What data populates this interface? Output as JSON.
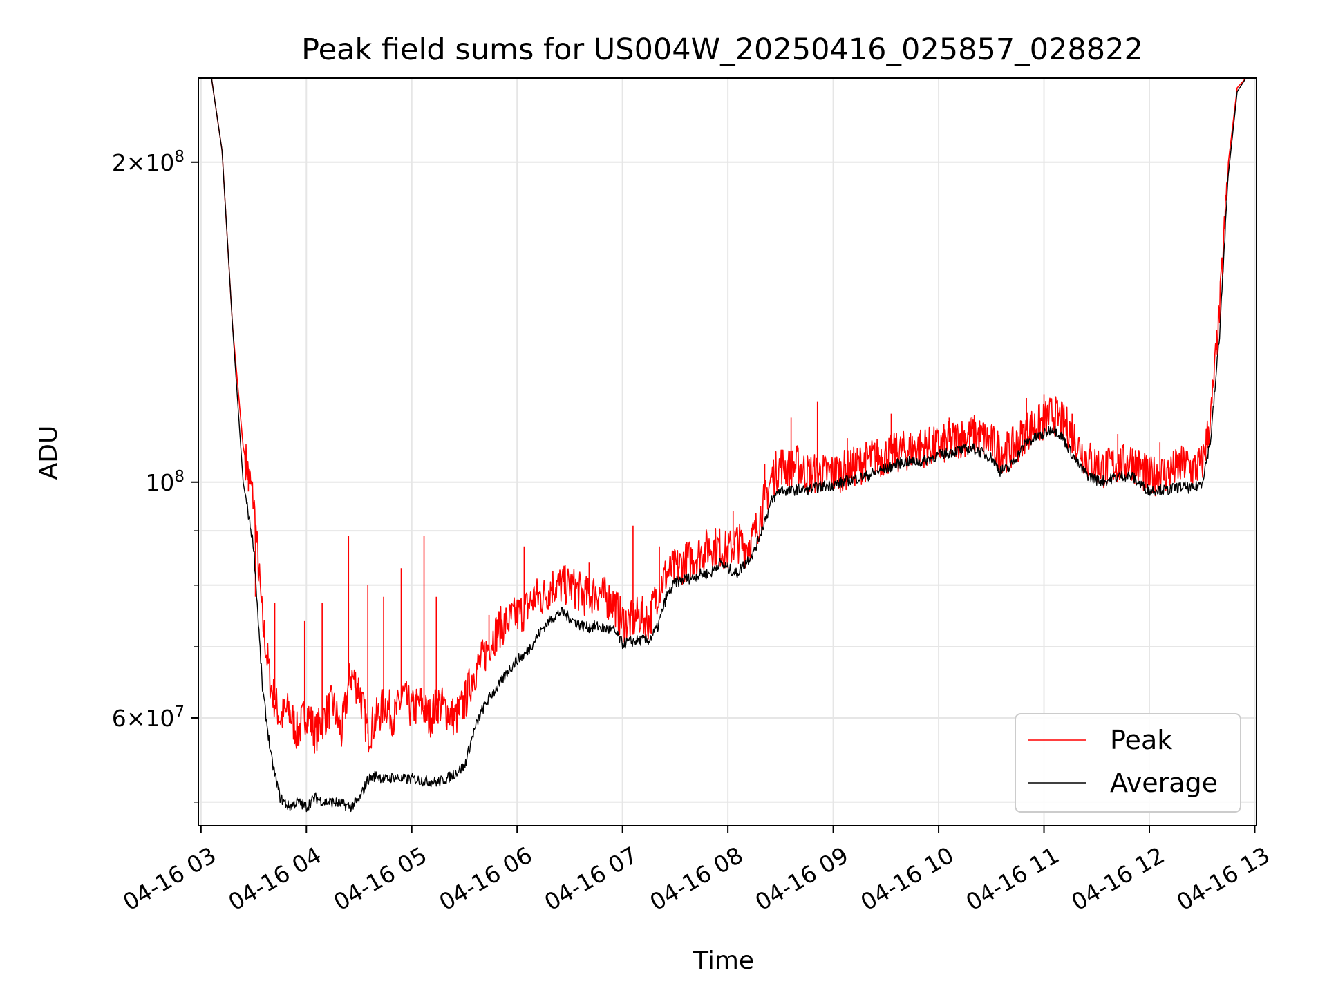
{
  "chart_data": {
    "type": "line",
    "title": "Peak field sums for US004W_20250416_025857_028822",
    "xlabel": "Time",
    "ylabel": "ADU",
    "y_scale": "log",
    "ylim": [
      47500000,
      240000000
    ],
    "xlim": [
      "04-16 02:58:30",
      "04-16 13:01:00"
    ],
    "grid": true,
    "legend_position": "lower-right",
    "x_ticks": [
      "04-16 03",
      "04-16 04",
      "04-16 05",
      "04-16 06",
      "04-16 07",
      "04-16 08",
      "04-16 09",
      "04-16 10",
      "04-16 11",
      "04-16 12",
      "04-16 13"
    ],
    "y_major_ticks": [
      {
        "value": 200000000,
        "mantissa": "2",
        "exponent": "8",
        "times": "×"
      },
      {
        "value": 100000000,
        "mantissa": "",
        "exponent": "8",
        "times": ""
      },
      {
        "value": 60000000,
        "mantissa": "6",
        "exponent": "7",
        "times": "×"
      }
    ],
    "y_minor_ticks": [
      50000000,
      60000000,
      70000000,
      80000000,
      90000000,
      300000000,
      400000000
    ],
    "series": [
      {
        "name": "Peak",
        "color": "#ff0000",
        "x": [
          "04-16 02:59",
          "04-16 03:06",
          "04-16 03:12",
          "04-16 03:18",
          "04-16 03:24",
          "04-16 03:30",
          "04-16 03:35",
          "04-16 03:40",
          "04-16 03:45",
          "04-16 03:50",
          "04-16 03:55",
          "04-16 04:00",
          "04-16 04:05",
          "04-16 04:10",
          "04-16 04:15",
          "04-16 04:20",
          "04-16 04:25",
          "04-16 04:30",
          "04-16 04:35",
          "04-16 04:40",
          "04-16 04:45",
          "04-16 04:50",
          "04-16 04:55",
          "04-16 05:00",
          "04-16 05:05",
          "04-16 05:10",
          "04-16 05:15",
          "04-16 05:20",
          "04-16 05:25",
          "04-16 05:30",
          "04-16 05:35",
          "04-16 05:40",
          "04-16 05:45",
          "04-16 05:50",
          "04-16 05:55",
          "04-16 06:00",
          "04-16 06:05",
          "04-16 06:10",
          "04-16 06:15",
          "04-16 06:20",
          "04-16 06:25",
          "04-16 06:30",
          "04-16 06:35",
          "04-16 06:40",
          "04-16 06:45",
          "04-16 06:50",
          "04-16 06:55",
          "04-16 07:00",
          "04-16 07:05",
          "04-16 07:10",
          "04-16 07:15",
          "04-16 07:20",
          "04-16 07:25",
          "04-16 07:30",
          "04-16 07:35",
          "04-16 07:40",
          "04-16 07:45",
          "04-16 07:50",
          "04-16 07:55",
          "04-16 08:00",
          "04-16 08:05",
          "04-16 08:10",
          "04-16 08:15",
          "04-16 08:20",
          "04-16 08:25",
          "04-16 08:30",
          "04-16 08:35",
          "04-16 08:40",
          "04-16 08:45",
          "04-16 08:50",
          "04-16 08:55",
          "04-16 09:00",
          "04-16 09:10",
          "04-16 09:20",
          "04-16 09:30",
          "04-16 09:40",
          "04-16 09:50",
          "04-16 10:00",
          "04-16 10:10",
          "04-16 10:20",
          "04-16 10:30",
          "04-16 10:35",
          "04-16 10:40",
          "04-16 10:45",
          "04-16 10:50",
          "04-16 10:55",
          "04-16 11:00",
          "04-16 11:05",
          "04-16 11:10",
          "04-16 11:15",
          "04-16 11:20",
          "04-16 11:25",
          "04-16 11:30",
          "04-16 11:35",
          "04-16 11:40",
          "04-16 11:45",
          "04-16 11:50",
          "04-16 11:55",
          "04-16 12:00",
          "04-16 12:05",
          "04-16 12:10",
          "04-16 12:15",
          "04-16 12:20",
          "04-16 12:25",
          "04-16 12:30",
          "04-16 12:35",
          "04-16 12:40",
          "04-16 12:45",
          "04-16 12:50",
          "04-16 12:55",
          "04-16 13:00"
        ],
        "y": [
          240000000,
          240000000,
          205000000,
          140000000,
          108000000,
          96000000,
          74000000,
          64000000,
          60000000,
          61000000,
          58000000,
          61000000,
          58000000,
          60000000,
          62000000,
          58000000,
          66000000,
          64000000,
          58000000,
          60000000,
          62000000,
          60000000,
          63000000,
          61000000,
          62000000,
          60000000,
          62000000,
          61000000,
          60000000,
          62000000,
          66000000,
          68000000,
          71000000,
          73000000,
          74000000,
          75000000,
          76000000,
          78000000,
          78000000,
          80000000,
          80000000,
          80000000,
          79000000,
          78000000,
          79000000,
          78000000,
          77000000,
          74000000,
          74000000,
          75000000,
          74000000,
          79000000,
          82000000,
          83000000,
          84000000,
          85000000,
          86000000,
          87000000,
          87000000,
          86000000,
          88000000,
          87000000,
          89000000,
          95000000,
          101000000,
          104000000,
          103000000,
          104000000,
          102000000,
          102000000,
          102000000,
          102000000,
          103000000,
          105000000,
          106000000,
          107000000,
          108000000,
          108000000,
          110000000,
          111000000,
          109000000,
          107000000,
          107000000,
          109000000,
          112000000,
          113000000,
          114000000,
          116000000,
          114000000,
          112000000,
          108000000,
          105000000,
          104000000,
          103000000,
          104000000,
          104000000,
          105000000,
          103000000,
          101000000,
          102000000,
          102000000,
          103000000,
          104000000,
          103000000,
          104000000,
          115000000,
          145000000,
          200000000,
          235000000,
          240000000,
          240000000
        ],
        "spikes": [
          {
            "x": "04-16 03:27",
            "y": 98000000
          },
          {
            "x": "04-16 03:31",
            "y": 78000000
          },
          {
            "x": "04-16 03:42",
            "y": 77000000
          },
          {
            "x": "04-16 03:59",
            "y": 74000000
          },
          {
            "x": "04-16 04:09",
            "y": 77000000
          },
          {
            "x": "04-16 04:24",
            "y": 89000000
          },
          {
            "x": "04-16 04:35",
            "y": 80000000
          },
          {
            "x": "04-16 04:44",
            "y": 78000000
          },
          {
            "x": "04-16 04:54",
            "y": 83000000
          },
          {
            "x": "04-16 05:07",
            "y": 89000000
          },
          {
            "x": "04-16 05:14",
            "y": 78000000
          },
          {
            "x": "04-16 05:44",
            "y": 75000000
          },
          {
            "x": "04-16 06:04",
            "y": 87000000
          },
          {
            "x": "04-16 06:24",
            "y": 82000000
          },
          {
            "x": "04-16 06:41",
            "y": 84000000
          },
          {
            "x": "04-16 07:06",
            "y": 91000000
          },
          {
            "x": "04-16 07:21",
            "y": 87000000
          },
          {
            "x": "04-16 07:53",
            "y": 89000000
          },
          {
            "x": "04-16 08:03",
            "y": 94000000
          },
          {
            "x": "04-16 08:21",
            "y": 104000000
          },
          {
            "x": "04-16 08:36",
            "y": 115000000
          },
          {
            "x": "04-16 08:51",
            "y": 119000000
          },
          {
            "x": "04-16 09:08",
            "y": 110000000
          },
          {
            "x": "04-16 09:33",
            "y": 116000000
          },
          {
            "x": "04-16 10:06",
            "y": 115000000
          },
          {
            "x": "04-16 10:23",
            "y": 110000000
          },
          {
            "x": "04-16 10:50",
            "y": 120000000
          },
          {
            "x": "04-16 11:00",
            "y": 121000000
          },
          {
            "x": "04-16 11:16",
            "y": 116000000
          },
          {
            "x": "04-16 11:42",
            "y": 111000000
          },
          {
            "x": "04-16 12:06",
            "y": 109000000
          }
        ]
      },
      {
        "name": "Average",
        "color": "#000000",
        "x": [
          "04-16 02:59",
          "04-16 03:06",
          "04-16 03:12",
          "04-16 03:18",
          "04-16 03:24",
          "04-16 03:30",
          "04-16 03:35",
          "04-16 03:40",
          "04-16 03:45",
          "04-16 03:50",
          "04-16 03:55",
          "04-16 04:00",
          "04-16 04:05",
          "04-16 04:10",
          "04-16 04:15",
          "04-16 04:20",
          "04-16 04:25",
          "04-16 04:30",
          "04-16 04:35",
          "04-16 04:40",
          "04-16 04:45",
          "04-16 04:50",
          "04-16 04:55",
          "04-16 05:00",
          "04-16 05:05",
          "04-16 05:10",
          "04-16 05:15",
          "04-16 05:20",
          "04-16 05:25",
          "04-16 05:30",
          "04-16 05:35",
          "04-16 05:40",
          "04-16 05:45",
          "04-16 05:50",
          "04-16 05:55",
          "04-16 06:00",
          "04-16 06:05",
          "04-16 06:10",
          "04-16 06:15",
          "04-16 06:20",
          "04-16 06:25",
          "04-16 06:30",
          "04-16 06:35",
          "04-16 06:40",
          "04-16 06:45",
          "04-16 06:50",
          "04-16 06:55",
          "04-16 07:00",
          "04-16 07:05",
          "04-16 07:10",
          "04-16 07:15",
          "04-16 07:20",
          "04-16 07:25",
          "04-16 07:30",
          "04-16 07:35",
          "04-16 07:40",
          "04-16 07:45",
          "04-16 07:50",
          "04-16 07:55",
          "04-16 08:00",
          "04-16 08:05",
          "04-16 08:10",
          "04-16 08:15",
          "04-16 08:20",
          "04-16 08:25",
          "04-16 08:30",
          "04-16 08:35",
          "04-16 08:40",
          "04-16 08:45",
          "04-16 08:50",
          "04-16 08:55",
          "04-16 09:00",
          "04-16 09:10",
          "04-16 09:20",
          "04-16 09:30",
          "04-16 09:40",
          "04-16 09:50",
          "04-16 10:00",
          "04-16 10:10",
          "04-16 10:20",
          "04-16 10:30",
          "04-16 10:35",
          "04-16 10:40",
          "04-16 10:45",
          "04-16 10:50",
          "04-16 10:55",
          "04-16 11:00",
          "04-16 11:05",
          "04-16 11:10",
          "04-16 11:15",
          "04-16 11:20",
          "04-16 11:25",
          "04-16 11:30",
          "04-16 11:35",
          "04-16 11:40",
          "04-16 11:45",
          "04-16 11:50",
          "04-16 11:55",
          "04-16 12:00",
          "04-16 12:05",
          "04-16 12:10",
          "04-16 12:15",
          "04-16 12:20",
          "04-16 12:25",
          "04-16 12:30",
          "04-16 12:35",
          "04-16 12:40",
          "04-16 12:45",
          "04-16 12:50",
          "04-16 12:55",
          "04-16 13:00"
        ],
        "y": [
          240000000,
          240000000,
          205000000,
          140000000,
          100000000,
          87000000,
          64000000,
          55000000,
          50500000,
          49500000,
          50000000,
          49500000,
          50500000,
          50000000,
          50000000,
          49800000,
          49500000,
          50200000,
          52500000,
          53000000,
          52500000,
          52800000,
          52500000,
          52600000,
          52400000,
          52300000,
          52200000,
          52600000,
          53300000,
          54000000,
          58000000,
          61000000,
          63000000,
          64500000,
          66500000,
          68000000,
          69000000,
          71000000,
          73000000,
          74500000,
          75500000,
          74500000,
          73500000,
          73000000,
          73200000,
          72800000,
          72500000,
          70500000,
          70800000,
          71000000,
          71000000,
          73000000,
          78000000,
          80500000,
          81000000,
          81300000,
          82000000,
          82000000,
          84000000,
          83000000,
          82000000,
          84000000,
          86000000,
          91000000,
          96000000,
          98500000,
          98000000,
          98500000,
          98300000,
          98800000,
          99200000,
          99400000,
          100500000,
          101500000,
          103000000,
          104500000,
          104500000,
          106000000,
          107000000,
          107500000,
          105500000,
          102500000,
          103000000,
          106000000,
          109000000,
          110000000,
          111000000,
          112500000,
          110500000,
          107000000,
          103500000,
          101500000,
          100500000,
          100200000,
          101000000,
          101500000,
          101200000,
          99500000,
          98200000,
          98500000,
          98200000,
          98800000,
          99000000,
          98500000,
          100000000,
          110000000,
          138000000,
          195000000,
          233000000,
          240000000,
          240000000
        ]
      }
    ]
  }
}
